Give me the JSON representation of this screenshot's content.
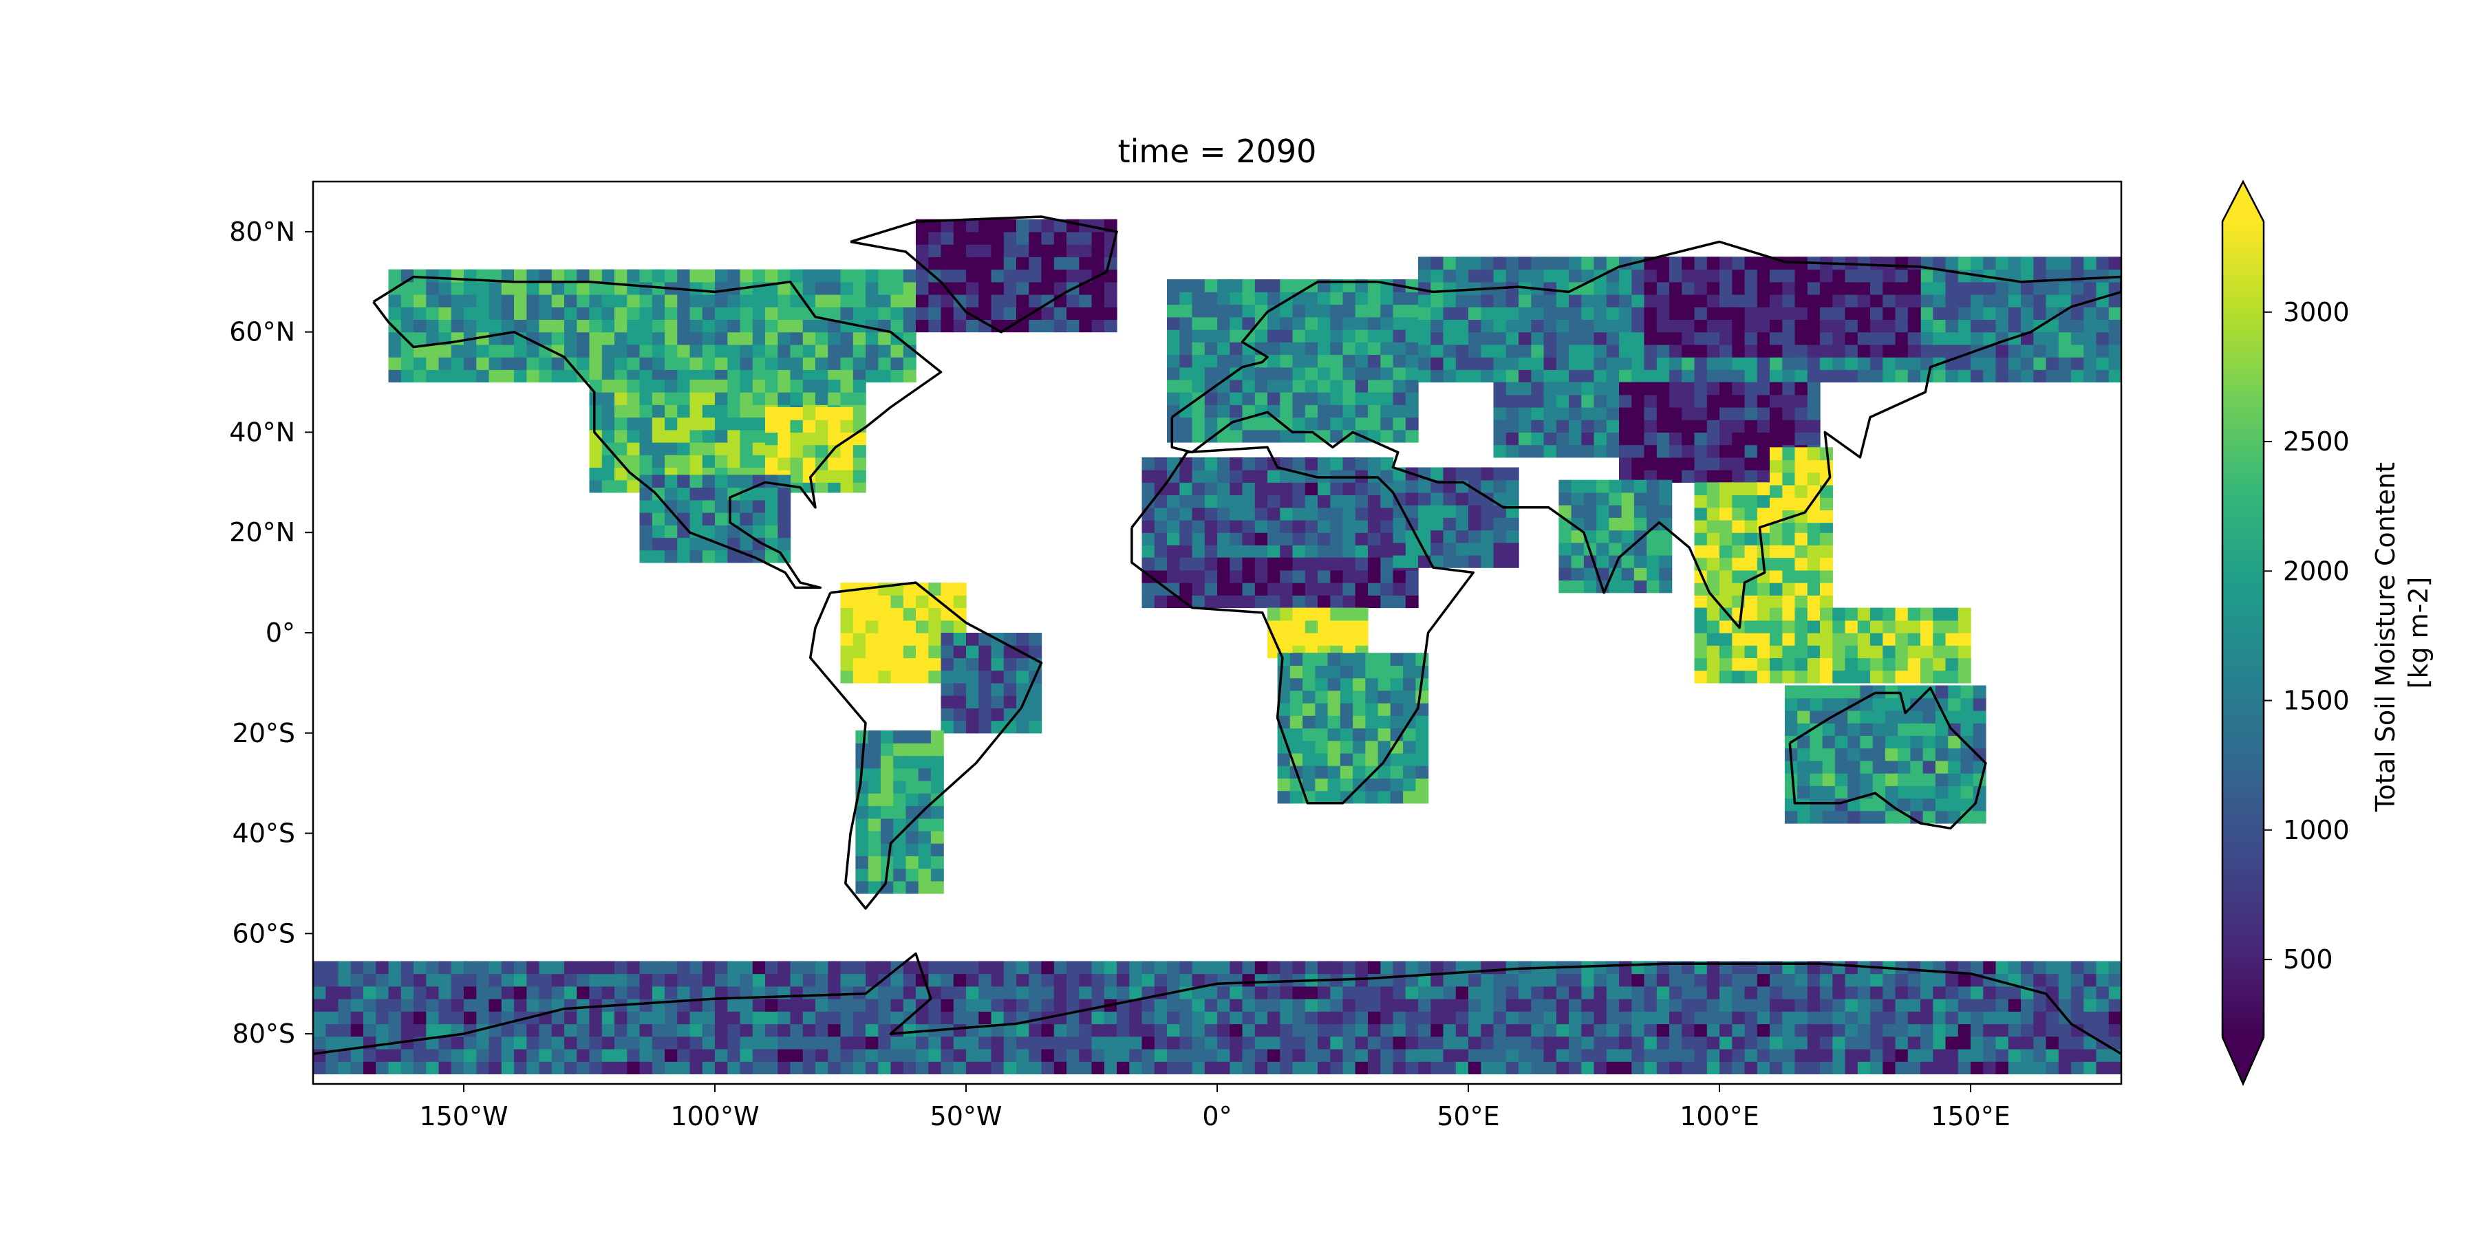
{
  "map": {
    "title": "time = 2090",
    "extent": {
      "lon_min": -180,
      "lon_max": 180,
      "lat_min": -90,
      "lat_max": 90
    },
    "x_ticks": [
      {
        "value": -150,
        "label": "150°W"
      },
      {
        "value": -100,
        "label": "100°W"
      },
      {
        "value": -50,
        "label": "50°W"
      },
      {
        "value": 0,
        "label": "0°"
      },
      {
        "value": 50,
        "label": "50°E"
      },
      {
        "value": 100,
        "label": "100°E"
      },
      {
        "value": 150,
        "label": "150°E"
      }
    ],
    "y_ticks": [
      {
        "value": 80,
        "label": "80°N"
      },
      {
        "value": 60,
        "label": "60°N"
      },
      {
        "value": 40,
        "label": "40°N"
      },
      {
        "value": 20,
        "label": "20°N"
      },
      {
        "value": 0,
        "label": "0°"
      },
      {
        "value": -20,
        "label": "20°S"
      },
      {
        "value": -40,
        "label": "40°S"
      },
      {
        "value": -60,
        "label": "60°S"
      },
      {
        "value": -80,
        "label": "80°S"
      }
    ],
    "colorbar": {
      "label_line1": "Total Soil Moisture Content",
      "label_line2": "[kg m-2]",
      "vmin": 200,
      "vmax": 3350,
      "extend": "both",
      "ticks": [
        {
          "value": 500,
          "label": "500"
        },
        {
          "value": 1000,
          "label": "1000"
        },
        {
          "value": 1500,
          "label": "1500"
        },
        {
          "value": 2000,
          "label": "2000"
        },
        {
          "value": 2500,
          "label": "2500"
        },
        {
          "value": 3000,
          "label": "3000"
        }
      ],
      "colormap": "viridis",
      "colors": [
        "#440154",
        "#482878",
        "#3e4989",
        "#31688e",
        "#26828e",
        "#1f9e89",
        "#35b779",
        "#6ece58",
        "#b5de2b",
        "#fde725"
      ]
    },
    "regions": [
      {
        "name": "north-america-boreal",
        "lon": [
          -165,
          -60
        ],
        "lat": [
          50,
          72
        ],
        "value": 1900
      },
      {
        "name": "north-america-central",
        "lon": [
          -125,
          -70
        ],
        "lat": [
          28,
          50
        ],
        "value": 2300
      },
      {
        "name": "north-america-east",
        "lon": [
          -90,
          -70
        ],
        "lat": [
          30,
          45
        ],
        "value": 3000
      },
      {
        "name": "mexico",
        "lon": [
          -115,
          -85
        ],
        "lat": [
          14,
          30
        ],
        "value": 1600
      },
      {
        "name": "amazon",
        "lon": [
          -75,
          -50
        ],
        "lat": [
          -10,
          8
        ],
        "value": 3200
      },
      {
        "name": "brazil-east",
        "lon": [
          -55,
          -36
        ],
        "lat": [
          -20,
          -2
        ],
        "value": 1300
      },
      {
        "name": "south-america-south",
        "lon": [
          -72,
          -55
        ],
        "lat": [
          -52,
          -20
        ],
        "value": 2000
      },
      {
        "name": "sahara",
        "lon": [
          -15,
          35
        ],
        "lat": [
          15,
          35
        ],
        "value": 1200
      },
      {
        "name": "sahel",
        "lon": [
          -15,
          40
        ],
        "lat": [
          5,
          15
        ],
        "value": 700
      },
      {
        "name": "congo",
        "lon": [
          10,
          30
        ],
        "lat": [
          -5,
          5
        ],
        "value": 3100
      },
      {
        "name": "southern-africa",
        "lon": [
          12,
          40
        ],
        "lat": [
          -34,
          -5
        ],
        "value": 1900
      },
      {
        "name": "arabia",
        "lon": [
          35,
          58
        ],
        "lat": [
          13,
          32
        ],
        "value": 1300
      },
      {
        "name": "europe",
        "lon": [
          -10,
          40
        ],
        "lat": [
          38,
          70
        ],
        "value": 1700
      },
      {
        "name": "siberia",
        "lon": [
          40,
          180
        ],
        "lat": [
          50,
          75
        ],
        "value": 1500
      },
      {
        "name": "siberia-east-dry",
        "lon": [
          85,
          140
        ],
        "lat": [
          55,
          75
        ],
        "value": 450
      },
      {
        "name": "central-asia",
        "lon": [
          55,
          90
        ],
        "lat": [
          35,
          50
        ],
        "value": 1500
      },
      {
        "name": "tibet-mongolia",
        "lon": [
          80,
          120
        ],
        "lat": [
          30,
          48
        ],
        "value": 550
      },
      {
        "name": "india",
        "lon": [
          68,
          90
        ],
        "lat": [
          8,
          30
        ],
        "value": 1800
      },
      {
        "name": "southeast-asia",
        "lon": [
          95,
          122
        ],
        "lat": [
          5,
          30
        ],
        "value": 2700
      },
      {
        "name": "east-china",
        "lon": [
          110,
          122
        ],
        "lat": [
          22,
          36
        ],
        "value": 3000
      },
      {
        "name": "indonesia",
        "lon": [
          95,
          150
        ],
        "lat": [
          -10,
          5
        ],
        "value": 2600
      },
      {
        "name": "australia",
        "lon": [
          113,
          153
        ],
        "lat": [
          -38,
          -12
        ],
        "value": 1800
      },
      {
        "name": "greenland-edge",
        "lon": [
          -60,
          -20
        ],
        "lat": [
          60,
          82
        ],
        "value": 600
      },
      {
        "name": "antarctica-edge",
        "lon": [
          -180,
          180
        ],
        "lat": [
          -88,
          -66
        ],
        "value": 1150
      }
    ]
  }
}
